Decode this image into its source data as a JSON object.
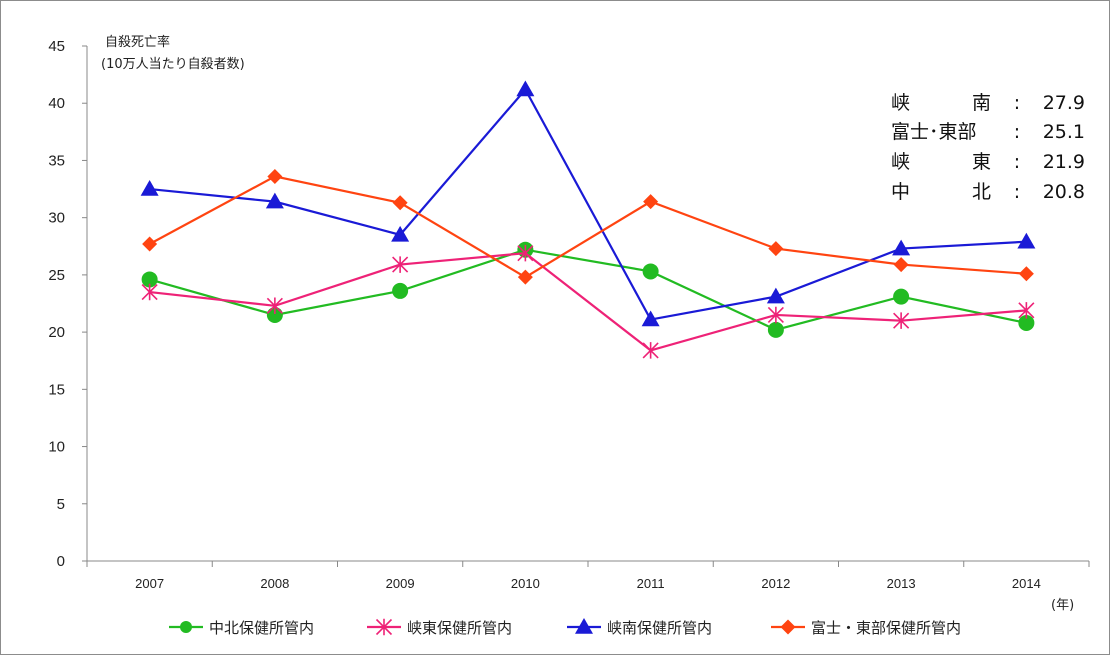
{
  "chart_data": {
    "type": "line",
    "ylabel_line1": "自殺死亡率",
    "ylabel_line2": "(10万人当たり自殺者数)",
    "x_unit": "(年)",
    "categories": [
      "2007",
      "2008",
      "2009",
      "2010",
      "2011",
      "2012",
      "2013",
      "2014"
    ],
    "ylim": [
      0,
      45
    ],
    "yticks": [
      0,
      5,
      10,
      15,
      20,
      25,
      30,
      35,
      40,
      45
    ],
    "grid": false,
    "legend_position": "bottom",
    "series": [
      {
        "name": "中北保健所管内",
        "color": "#22bb22",
        "marker": "circle",
        "values": [
          24.6,
          21.5,
          23.6,
          27.2,
          25.3,
          20.2,
          23.1,
          20.8
        ]
      },
      {
        "name": "峡東保健所管内",
        "color": "#ee2277",
        "marker": "asterisk",
        "values": [
          23.5,
          22.3,
          25.9,
          26.9,
          18.4,
          21.5,
          21.0,
          21.9
        ]
      },
      {
        "name": "峡南保健所管内",
        "color": "#1a1ad6",
        "marker": "triangle",
        "values": [
          32.5,
          31.4,
          28.5,
          41.2,
          21.1,
          23.1,
          27.3,
          27.9
        ]
      },
      {
        "name": "富士・東部保健所管内",
        "color": "#ff4411",
        "marker": "diamond",
        "values": [
          27.7,
          33.6,
          31.3,
          24.8,
          31.4,
          27.3,
          25.9,
          25.1
        ]
      }
    ],
    "annotations": [
      {
        "name_a": "峡",
        "name_b": "南",
        "sep": ":",
        "value": "27.9"
      },
      {
        "name_a": "富士･東部",
        "name_b": "",
        "sep": ":",
        "value": "25.1"
      },
      {
        "name_a": "峡",
        "name_b": "東",
        "sep": ":",
        "value": "21.9"
      },
      {
        "name_a": "中",
        "name_b": "北",
        "sep": ":",
        "value": "20.8"
      }
    ]
  }
}
